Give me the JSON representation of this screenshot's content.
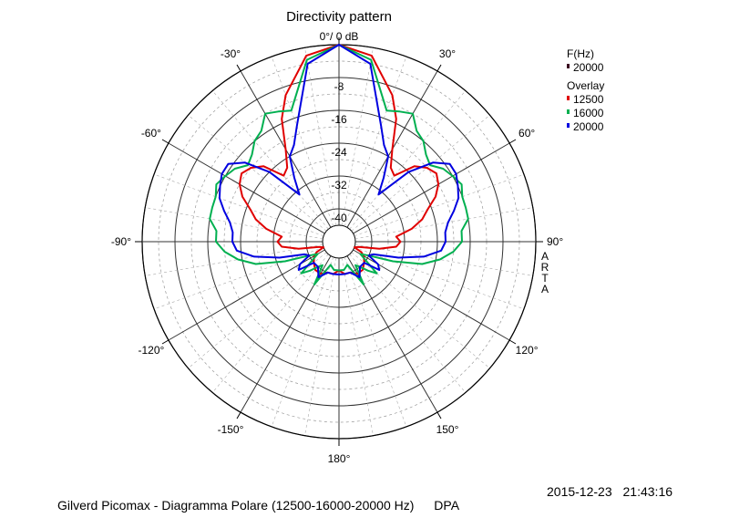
{
  "chart_data": {
    "type": "polar",
    "title": "Directivity pattern",
    "reference_label": "0°/ 0 dB",
    "radial_ticks": [
      -8,
      -16,
      -24,
      -32,
      -40
    ],
    "radial_tick_labels": [
      "-8",
      "-16",
      "-24",
      "-32",
      "-40"
    ],
    "rlim": [
      -44,
      0
    ],
    "angle_tick_labels": [
      {
        "angle": -30,
        "label": "-30°"
      },
      {
        "angle": 30,
        "label": "30°"
      },
      {
        "angle": -60,
        "label": "-60°"
      },
      {
        "angle": 60,
        "label": "60°"
      },
      {
        "angle": -90,
        "label": "-90°"
      },
      {
        "angle": 90,
        "label": "90°"
      },
      {
        "angle": -120,
        "label": "-120°"
      },
      {
        "angle": 120,
        "label": "120°"
      },
      {
        "angle": -150,
        "label": "-150°"
      },
      {
        "angle": 150,
        "label": "150°"
      },
      {
        "angle": 180,
        "label": "180°"
      }
    ],
    "side_text": [
      "A",
      "R",
      "T",
      "A"
    ],
    "legend": {
      "header": "F(Hz)",
      "main_entry": {
        "label": "20000",
        "color": "#3a0020"
      },
      "overlay_header": "Overlay",
      "entries": [
        {
          "label": "12500",
          "color": "#e00000"
        },
        {
          "label": "16000",
          "color": "#00b050"
        },
        {
          "label": "20000",
          "color": "#0000e0"
        }
      ]
    },
    "grid": true,
    "series": [
      {
        "name": "12500",
        "color": "#e00000",
        "angles": [
          0,
          10,
          20,
          25,
          30,
          35,
          40,
          45,
          50,
          55,
          60,
          65,
          70,
          75,
          80,
          85,
          90,
          95,
          100,
          105,
          110,
          115,
          120,
          130,
          140,
          150,
          160,
          170,
          180
        ],
        "db": [
          0,
          -2,
          -10,
          -15,
          -22,
          -26,
          -27,
          -22,
          -20,
          -19,
          -20,
          -22,
          -25,
          -27,
          -30,
          -34,
          -33,
          -34,
          -38,
          -43,
          -44,
          -42,
          -41,
          -40,
          -39,
          -39,
          -40,
          -40,
          -41
        ]
      },
      {
        "name": "16000",
        "color": "#00b050",
        "angles": [
          0,
          10,
          20,
          25,
          30,
          35,
          40,
          45,
          50,
          55,
          60,
          65,
          70,
          75,
          80,
          85,
          90,
          95,
          100,
          105,
          110,
          115,
          120,
          125,
          130,
          135,
          140,
          145,
          150,
          160,
          170,
          180
        ],
        "db": [
          0,
          -3,
          -14,
          -13,
          -12,
          -15,
          -16,
          -18,
          -19,
          -17,
          -16,
          -15,
          -16,
          -16,
          -16,
          -18,
          -18,
          -20,
          -23,
          -27,
          -34,
          -40,
          -42,
          -40,
          -36,
          -38,
          -40,
          -41,
          -36,
          -42,
          -41,
          -41
        ]
      },
      {
        "name": "20000",
        "color": "#0000e0",
        "angles": [
          0,
          10,
          20,
          25,
          30,
          35,
          40,
          45,
          50,
          55,
          60,
          65,
          70,
          75,
          80,
          85,
          90,
          95,
          100,
          105,
          110,
          115,
          120,
          125,
          130,
          140,
          150,
          160,
          170,
          180
        ],
        "db": [
          0,
          -4,
          -18,
          -22,
          -24,
          -29,
          -33,
          -24,
          -18,
          -15,
          -15,
          -16,
          -17,
          -19,
          -21,
          -22,
          -22,
          -23,
          -27,
          -33,
          -39,
          -40,
          -37,
          -36,
          -40,
          -40,
          -38,
          -40,
          -40,
          -40
        ]
      }
    ]
  },
  "footer": {
    "caption": "Gilverd Picomax - Diagramma Polare (12500-16000-20000 Hz)",
    "brand": "DPA",
    "date": "2015-12-23",
    "time": "21:43:16"
  }
}
